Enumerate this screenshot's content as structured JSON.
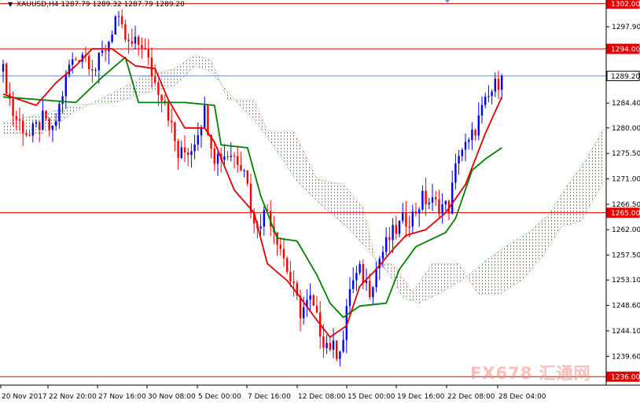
{
  "header": {
    "arrow": "▼",
    "symbol": "XAUUSD,H4",
    "ohlc": "1287.79 1289.32 1287.79 1289.20"
  },
  "watermark": "FX678 汇通网",
  "colors": {
    "background": "#ffffff",
    "bull_candle": "#0000ff",
    "bear_candle": "#ff0000",
    "tenkan_sen": "#e00000",
    "kijun_sen": "#008000",
    "cloud_bear": "#e07050",
    "cloud_bull": "#5aa06a",
    "level_lines": "#e00000",
    "price_line": "#7a8cbf"
  },
  "chart_data": {
    "type": "candlestick",
    "instrument": "XAUUSD",
    "timeframe": "H4",
    "ylim": [
      1234.5,
      1302.5
    ],
    "y_ticks": [
      1297.9,
      1294.0,
      1289.2,
      1284.4,
      1280.0,
      1275.5,
      1271.0,
      1266.5,
      1262.0,
      1257.5,
      1253.1,
      1248.6,
      1244.1,
      1239.6
    ],
    "x_ticks": [
      "20 Nov 2017",
      "22 Nov 20:00",
      "27 Nov 16:00",
      "30 Nov 08:00",
      "5 Dec 00:00",
      "7 Dec 16:00",
      "12 Dec 08:00",
      "15 Dec 00:00",
      "19 Dec 16:00",
      "22 Dec 08:00",
      "28 Dec 04:00"
    ],
    "horizontal_levels": [
      {
        "label": "1302.00",
        "value": 1302.0
      },
      {
        "label": "1294.00",
        "value": 1294.0
      },
      {
        "label": "1265.00",
        "value": 1265.0
      },
      {
        "label": "1236.00",
        "value": 1236.0
      }
    ],
    "current_price": {
      "label": "1289.20",
      "value": 1289.2
    },
    "close_path": [
      [
        0,
        1290.0
      ],
      [
        3,
        1282.5
      ],
      [
        8,
        1278.5
      ],
      [
        12,
        1281.5
      ],
      [
        15,
        1279.0
      ],
      [
        20,
        1291.0
      ],
      [
        24,
        1293.5
      ],
      [
        28,
        1290.5
      ],
      [
        32,
        1295.5
      ],
      [
        34,
        1299.5
      ],
      [
        38,
        1294.5
      ],
      [
        42,
        1295.0
      ],
      [
        46,
        1288.0
      ],
      [
        49,
        1285.0
      ],
      [
        53,
        1275.0
      ],
      [
        57,
        1276.5
      ],
      [
        61,
        1283.0
      ],
      [
        64,
        1275.0
      ],
      [
        69,
        1275.5
      ],
      [
        73,
        1273.5
      ],
      [
        76,
        1262.5
      ],
      [
        80,
        1265.5
      ],
      [
        84,
        1259.0
      ],
      [
        87,
        1253.0
      ],
      [
        90,
        1247.5
      ],
      [
        93,
        1249.5
      ],
      [
        97,
        1242.5
      ],
      [
        101,
        1240.5
      ],
      [
        103,
        1242.5
      ],
      [
        105,
        1252.0
      ],
      [
        108,
        1254.5
      ],
      [
        111,
        1251.5
      ],
      [
        114,
        1257.0
      ],
      [
        117,
        1260.5
      ],
      [
        121,
        1263.5
      ],
      [
        124,
        1264.5
      ],
      [
        127,
        1267.5
      ],
      [
        131,
        1266.5
      ],
      [
        135,
        1266.0
      ],
      [
        138,
        1276.0
      ],
      [
        141,
        1277.0
      ],
      [
        145,
        1283.0
      ],
      [
        148,
        1286.5
      ],
      [
        151,
        1289.2
      ]
    ],
    "tenkan_sen": [
      [
        0,
        1286.0
      ],
      [
        10,
        1284.0
      ],
      [
        16,
        1288.0
      ],
      [
        22,
        1291.0
      ],
      [
        27,
        1294.0
      ],
      [
        33,
        1294.0
      ],
      [
        40,
        1291.0
      ],
      [
        46,
        1290.5
      ],
      [
        50,
        1285.0
      ],
      [
        55,
        1280.0
      ],
      [
        61,
        1280.0
      ],
      [
        64,
        1277.5
      ],
      [
        70,
        1269.0
      ],
      [
        76,
        1265.0
      ],
      [
        80,
        1256.0
      ],
      [
        86,
        1253.0
      ],
      [
        90,
        1250.0
      ],
      [
        95,
        1246.0
      ],
      [
        99,
        1243.0
      ],
      [
        104,
        1245.0
      ],
      [
        108,
        1252.0
      ],
      [
        113,
        1255.0
      ],
      [
        118,
        1258.5
      ],
      [
        122,
        1261.0
      ],
      [
        128,
        1262.0
      ],
      [
        134,
        1265.0
      ],
      [
        140,
        1270.0
      ],
      [
        146,
        1279.0
      ],
      [
        151,
        1285.5
      ]
    ],
    "kijun_sen": [
      [
        0,
        1285.5
      ],
      [
        22,
        1284.5
      ],
      [
        30,
        1289.0
      ],
      [
        37,
        1292.5
      ],
      [
        41,
        1284.5
      ],
      [
        55,
        1284.5
      ],
      [
        64,
        1284.0
      ],
      [
        66,
        1277.0
      ],
      [
        74,
        1276.5
      ],
      [
        78,
        1268.0
      ],
      [
        83,
        1260.5
      ],
      [
        89,
        1260.0
      ],
      [
        95,
        1254.0
      ],
      [
        99,
        1249.0
      ],
      [
        103,
        1246.5
      ],
      [
        108,
        1248.5
      ],
      [
        116,
        1249.0
      ],
      [
        120,
        1255.0
      ],
      [
        125,
        1259.0
      ],
      [
        134,
        1261.5
      ],
      [
        137,
        1264.0
      ],
      [
        142,
        1272.5
      ],
      [
        146,
        1274.5
      ],
      [
        151,
        1276.5
      ]
    ],
    "cloud_span_a": [
      [
        0,
        1281.0
      ],
      [
        12,
        1282.5
      ],
      [
        22,
        1284.0
      ],
      [
        34,
        1284.5
      ],
      [
        42,
        1286.0
      ],
      [
        52,
        1287.5
      ],
      [
        58,
        1291.0
      ],
      [
        63,
        1290.0
      ],
      [
        70,
        1285.0
      ],
      [
        78,
        1280.0
      ],
      [
        84,
        1275.0
      ],
      [
        89,
        1270.5
      ],
      [
        97,
        1266.0
      ],
      [
        105,
        1262.0
      ],
      [
        111,
        1258.0
      ],
      [
        117,
        1254.0
      ],
      [
        121,
        1250.0
      ],
      [
        126,
        1249.0
      ],
      [
        133,
        1251.0
      ],
      [
        140,
        1253.5
      ],
      [
        146,
        1256.5
      ],
      [
        152,
        1259.0
      ],
      [
        159,
        1261.5
      ],
      [
        165,
        1264.5
      ],
      [
        171,
        1270.0
      ],
      [
        176,
        1274.0
      ],
      [
        182,
        1280.0
      ]
    ],
    "cloud_span_b": [
      [
        0,
        1279.0
      ],
      [
        12,
        1279.0
      ],
      [
        22,
        1283.0
      ],
      [
        34,
        1286.5
      ],
      [
        42,
        1289.0
      ],
      [
        52,
        1290.5
      ],
      [
        58,
        1293.0
      ],
      [
        63,
        1292.0
      ],
      [
        68,
        1285.0
      ],
      [
        76,
        1285.0
      ],
      [
        80,
        1279.5
      ],
      [
        88,
        1279.5
      ],
      [
        95,
        1271.0
      ],
      [
        103,
        1270.0
      ],
      [
        109,
        1266.0
      ],
      [
        113,
        1256.0
      ],
      [
        118,
        1256.0
      ],
      [
        124,
        1251.0
      ],
      [
        130,
        1256.0
      ],
      [
        138,
        1256.0
      ],
      [
        144,
        1250.5
      ],
      [
        150,
        1250.5
      ],
      [
        157,
        1253.0
      ],
      [
        163,
        1257.0
      ],
      [
        169,
        1262.5
      ],
      [
        175,
        1263.5
      ],
      [
        182,
        1270.5
      ]
    ]
  }
}
